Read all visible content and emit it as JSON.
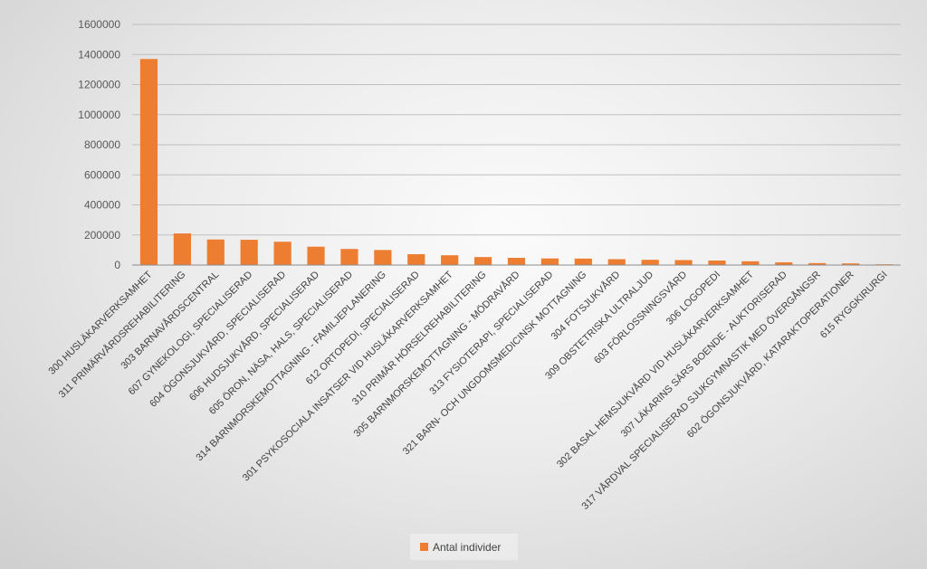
{
  "chart_data": {
    "type": "bar",
    "categories": [
      "300 HUSLÄKARVERKSAMHET",
      "311 PRIMÄRVÅRDSREHABILITERING",
      "303 BARNAVÅRDSCENTRAL",
      "607 GYNEKOLOGI, SPECIALISERAD",
      "604 ÖGONSJUKVÅRD, SPECIALISERAD",
      "606 HUDSJUKVÅRD, SPECIALISERAD",
      "605 ÖRON, NÄSA, HALS, SPECIALISERAD",
      "314 BARNMORSKEMOTTAGNING - FAMILJEPLANERING",
      "612 ORTOPEDI, SPECIALISERAD",
      "301 PSYKOSOCIALA INSATSER VID HUSLÄKARVERKSAMHET",
      "310 PRIMÄR HÖRSELREHABILITERING",
      "305 BARNMORSKEMOTTAGNING - MÖDRAVÅRD",
      "313 FYSIOTERAPI, SPECIALISERAD",
      "321 BARN- OCH UNGDOMSMEDICINSK MOTTAGNING",
      "304 FOTSJUKVÅRD",
      "309 OBSTETRISKA ULTRALJUD",
      "603 FÖRLOSSNINGSVÅRD",
      "306 LOGOPEDI",
      "302 BASAL HEMSJUKVÅRD VID HUSLÄKARVERKSAMHET",
      "307 LÄKARINS SÄRS BOENDE - AUKTORISERAD",
      "317 VÅRDVAL SPECIALISERAD SJUKGYMNASTIK MED ÖVERGÅNGSR",
      "602 ÖGONSJUKVÅRD, KATARAKTOPERATIONER",
      "615 RYGGKIRURGI"
    ],
    "series": [
      {
        "name": "Antal individer",
        "color": "#ED7D31",
        "values": [
          1370000,
          210000,
          170000,
          168000,
          155000,
          122000,
          107000,
          100000,
          72000,
          65000,
          53000,
          48000,
          44000,
          43000,
          39000,
          35000,
          33000,
          30000,
          25000,
          18000,
          13000,
          11000,
          5000
        ]
      }
    ],
    "ylim": [
      0,
      1600000
    ],
    "yticks": [
      "0",
      "200000",
      "400000",
      "600000",
      "800000",
      "1000000",
      "1200000",
      "1400000",
      "1600000"
    ],
    "grid": true,
    "legend_position": "bottom-center"
  }
}
